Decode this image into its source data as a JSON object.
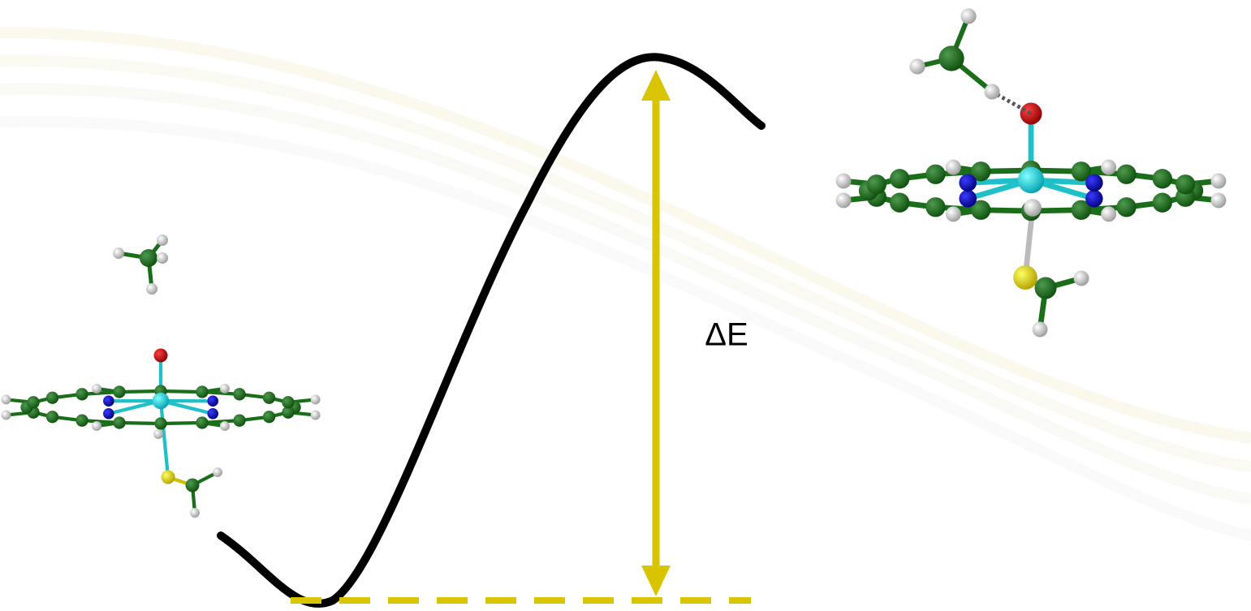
{
  "label": "ΔE"
}
